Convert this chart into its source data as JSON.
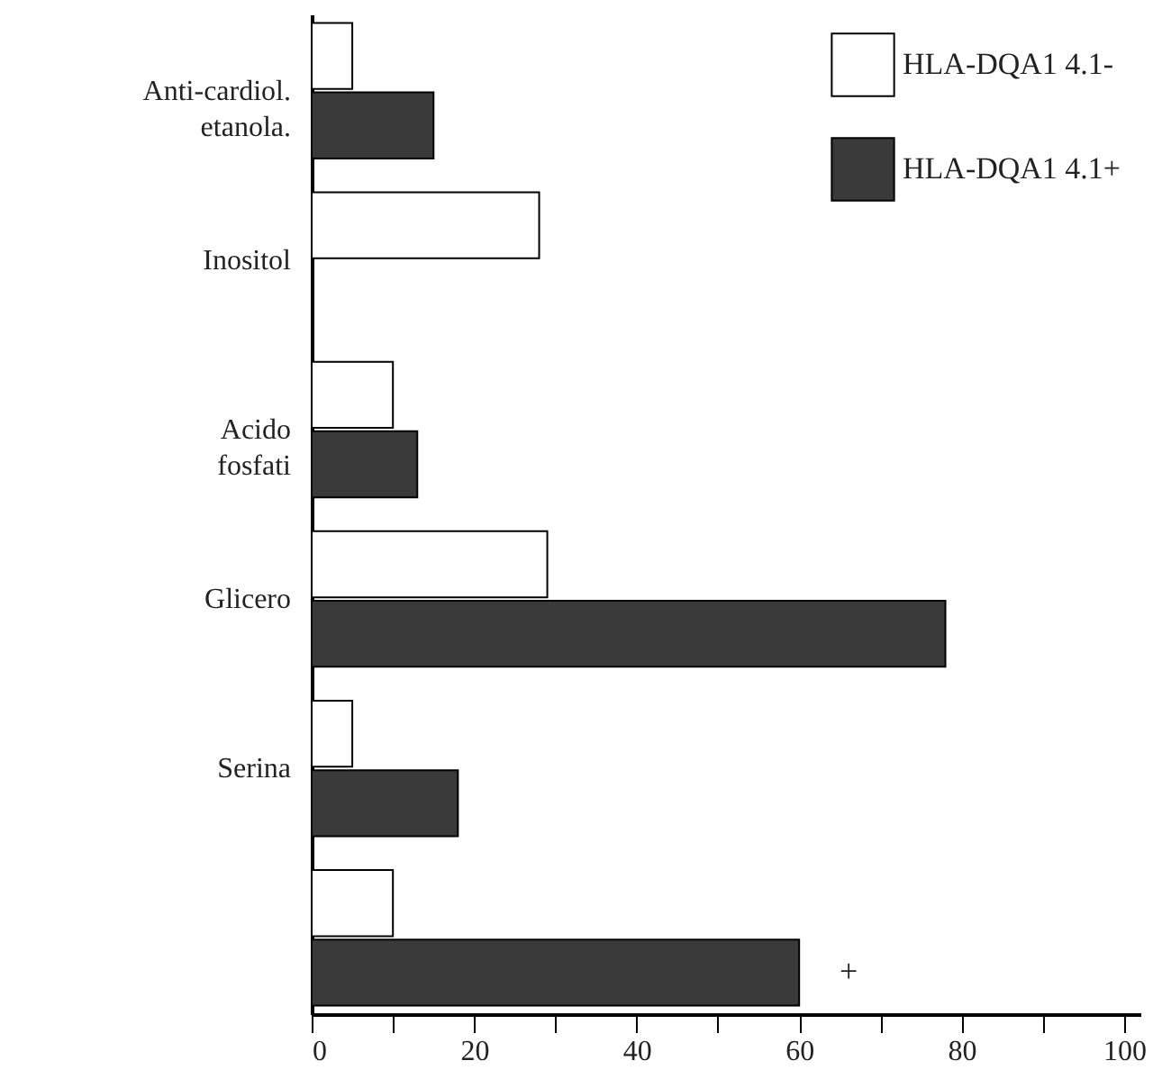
{
  "chart_data": {
    "type": "bar",
    "orientation": "horizontal",
    "categories": [
      "Anti-cardiol. etanola.",
      "Inositol",
      "Acido fosfati",
      "Glicero",
      "Serina",
      null
    ],
    "series": [
      {
        "name": "HLA-DQA1 4.1-",
        "color": "#ffffff",
        "values": [
          5,
          28,
          10,
          29,
          5,
          10
        ]
      },
      {
        "name": "HLA-DQA1 4.1+",
        "color": "#3a3a3a",
        "values": [
          15,
          null,
          13,
          78,
          18,
          60
        ]
      }
    ],
    "xlim": [
      0,
      102
    ],
    "xticks": [
      0,
      {
        "value": 10,
        "label": null
      },
      20,
      {
        "value": 30,
        "label": null
      },
      40,
      {
        "value": 50,
        "label": null
      },
      60,
      {
        "value": 70,
        "label": null
      },
      80,
      {
        "value": 90,
        "label": null
      },
      100
    ],
    "annotations": [
      "+"
    ],
    "legend": "top right",
    "grid": false
  }
}
